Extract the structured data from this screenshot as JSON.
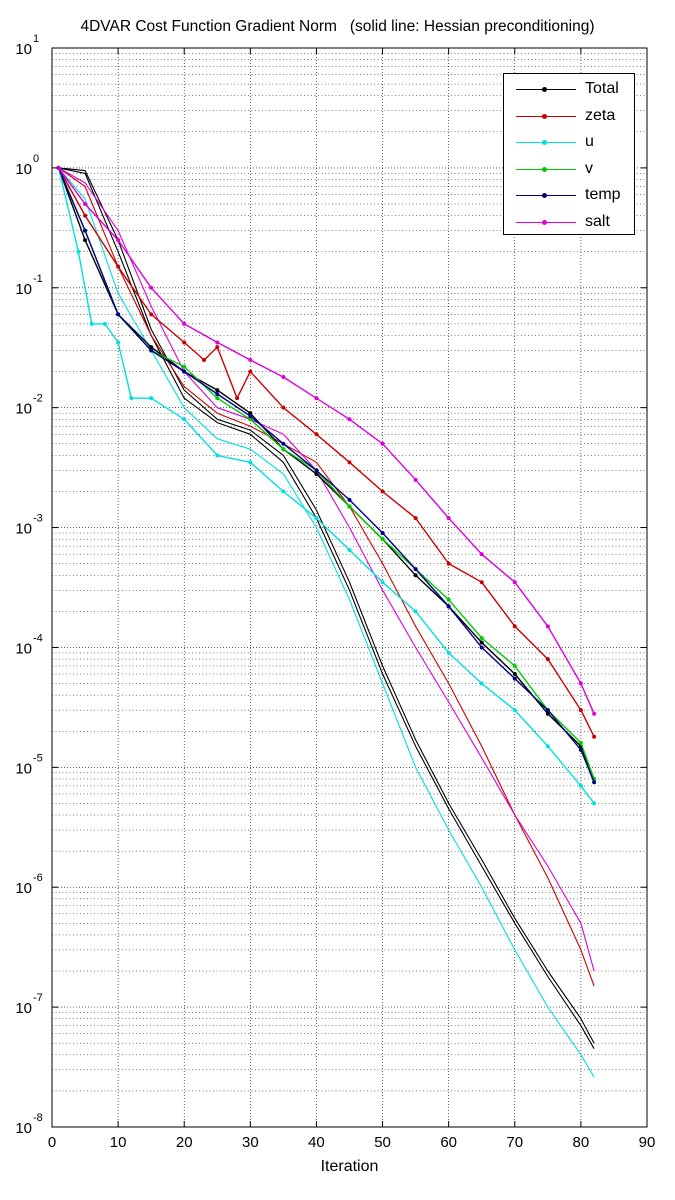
{
  "chart_data": {
    "type": "line",
    "title": "4DVAR Cost Function Gradient Norm   (solid line: Hessian preconditioning)",
    "xlabel": "Iteration",
    "ylabel": "",
    "xlim": [
      0,
      90
    ],
    "ylim": [
      1e-08,
      10
    ],
    "yscale": "log",
    "grid": true,
    "legend_position": "top-right",
    "x_ticks": [
      "0",
      "10",
      "20",
      "30",
      "40",
      "50",
      "60",
      "70",
      "80",
      "90"
    ],
    "y_ticks": [
      {
        "base": "10",
        "exp": "1"
      },
      {
        "base": "10",
        "exp": "0"
      },
      {
        "base": "10",
        "exp": "-1"
      },
      {
        "base": "10",
        "exp": "-2"
      },
      {
        "base": "10",
        "exp": "-3"
      },
      {
        "base": "10",
        "exp": "-4"
      },
      {
        "base": "10",
        "exp": "-5"
      },
      {
        "base": "10",
        "exp": "-6"
      },
      {
        "base": "10",
        "exp": "-7"
      },
      {
        "base": "10",
        "exp": "-8"
      }
    ],
    "series": [
      {
        "name": "Total",
        "color": "#000000",
        "marker": "dot",
        "x": [
          1,
          5,
          10,
          15,
          20,
          25,
          30,
          35,
          40,
          45,
          50,
          55,
          60,
          65,
          70,
          75,
          80,
          82
        ],
        "y": [
          1.0,
          0.25,
          0.06,
          0.032,
          0.02,
          0.014,
          0.009,
          0.0045,
          0.0028,
          0.0015,
          0.0008,
          0.0004,
          0.00022,
          0.00011,
          6e-05,
          2.8e-05,
          1.5e-05,
          8e-06
        ]
      },
      {
        "name": "zeta",
        "color": "#cc0000",
        "marker": "dot",
        "x": [
          1,
          5,
          10,
          15,
          20,
          23,
          25,
          28,
          30,
          35,
          40,
          45,
          50,
          55,
          60,
          65,
          70,
          75,
          80,
          82
        ],
        "y": [
          1.0,
          0.4,
          0.15,
          0.06,
          0.035,
          0.025,
          0.032,
          0.012,
          0.02,
          0.01,
          0.006,
          0.0035,
          0.002,
          0.0012,
          0.0005,
          0.00035,
          0.00015,
          8e-05,
          3e-05,
          1.8e-05
        ]
      },
      {
        "name": "u",
        "color": "#00e0e0",
        "marker": "dot",
        "x": [
          1,
          4,
          6,
          8,
          10,
          12,
          15,
          20,
          25,
          30,
          35,
          40,
          45,
          50,
          55,
          60,
          65,
          70,
          75,
          80,
          82
        ],
        "y": [
          1.0,
          0.2,
          0.05,
          0.05,
          0.035,
          0.012,
          0.012,
          0.008,
          0.004,
          0.0035,
          0.002,
          0.0012,
          0.00065,
          0.00035,
          0.0002,
          9e-05,
          5e-05,
          3e-05,
          1.5e-05,
          7e-06,
          5e-06
        ]
      },
      {
        "name": "v",
        "color": "#00cc00",
        "marker": "dot",
        "x": [
          1,
          5,
          10,
          15,
          20,
          25,
          30,
          35,
          40,
          45,
          50,
          55,
          60,
          65,
          70,
          75,
          80,
          82
        ],
        "y": [
          1.0,
          0.3,
          0.06,
          0.03,
          0.022,
          0.012,
          0.008,
          0.0045,
          0.003,
          0.0015,
          0.0008,
          0.00045,
          0.00025,
          0.00012,
          7e-05,
          3e-05,
          1.6e-05,
          8e-06
        ]
      },
      {
        "name": "temp",
        "color": "#00008b",
        "marker": "dot",
        "x": [
          1,
          5,
          10,
          15,
          20,
          25,
          30,
          35,
          40,
          45,
          50,
          55,
          60,
          65,
          70,
          75,
          80,
          82
        ],
        "y": [
          1.0,
          0.3,
          0.06,
          0.03,
          0.02,
          0.013,
          0.0085,
          0.005,
          0.003,
          0.0017,
          0.0009,
          0.00045,
          0.00022,
          0.0001,
          5.5e-05,
          3e-05,
          1.4e-05,
          7.5e-06
        ]
      },
      {
        "name": "salt",
        "color": "#dd00dd",
        "marker": "dot",
        "x": [
          1,
          5,
          10,
          15,
          20,
          25,
          30,
          35,
          40,
          45,
          50,
          55,
          60,
          65,
          70,
          75,
          80,
          82
        ],
        "y": [
          1.0,
          0.5,
          0.25,
          0.1,
          0.05,
          0.035,
          0.025,
          0.018,
          0.012,
          0.008,
          0.005,
          0.0025,
          0.0012,
          0.0006,
          0.00035,
          0.00015,
          5e-05,
          2.8e-05
        ]
      },
      {
        "color": "#000000",
        "marker": "none",
        "x": [
          1,
          5,
          10,
          15,
          20,
          25,
          30,
          35,
          40,
          45,
          50,
          55,
          60,
          65,
          70,
          75,
          80,
          82
        ],
        "y": [
          1.0,
          0.9,
          0.2,
          0.04,
          0.012,
          0.0075,
          0.006,
          0.0035,
          0.0012,
          0.0003,
          6e-05,
          1.5e-05,
          4.5e-06,
          1.5e-06,
          5e-07,
          1.8e-07,
          7e-08,
          4.5e-08
        ]
      },
      {
        "color": "#000000",
        "marker": "none",
        "x": [
          1,
          5,
          10,
          15,
          20,
          25,
          30,
          35,
          40,
          45,
          50,
          55,
          60,
          65,
          70,
          75,
          80,
          82
        ],
        "y": [
          1.0,
          0.95,
          0.25,
          0.045,
          0.014,
          0.008,
          0.0065,
          0.004,
          0.0014,
          0.00035,
          7e-05,
          1.7e-05,
          5e-06,
          1.7e-06,
          5.5e-07,
          2e-07,
          8e-08,
          5e-08
        ]
      },
      {
        "color": "#cc0000",
        "marker": "none",
        "x": [
          1,
          5,
          10,
          15,
          20,
          25,
          30,
          35,
          40,
          45,
          50,
          55,
          60,
          65,
          70,
          75,
          80,
          82
        ],
        "y": [
          1.0,
          0.7,
          0.15,
          0.04,
          0.015,
          0.009,
          0.007,
          0.005,
          0.0035,
          0.0015,
          0.0005,
          0.00015,
          5e-05,
          1.5e-05,
          4e-06,
          1.2e-06,
          3e-07,
          1.5e-07
        ]
      },
      {
        "color": "#00e0e0",
        "marker": "none",
        "x": [
          1,
          5,
          10,
          15,
          20,
          25,
          30,
          35,
          40,
          45,
          50,
          55,
          60,
          65,
          70,
          75,
          80,
          82
        ],
        "y": [
          1.0,
          0.55,
          0.09,
          0.03,
          0.01,
          0.0055,
          0.0045,
          0.0028,
          0.001,
          0.00025,
          5e-05,
          1e-05,
          3e-06,
          1e-06,
          3e-07,
          1e-07,
          4e-08,
          2.6e-08
        ]
      },
      {
        "color": "#dd00dd",
        "marker": "none",
        "x": [
          1,
          5,
          10,
          15,
          20,
          25,
          30,
          35,
          40,
          45,
          50,
          55,
          60,
          65,
          70,
          75,
          80,
          82
        ],
        "y": [
          1.0,
          0.75,
          0.3,
          0.07,
          0.02,
          0.01,
          0.008,
          0.006,
          0.003,
          0.001,
          0.0003,
          0.0001,
          3.5e-05,
          1.2e-05,
          4e-06,
          1.5e-06,
          5e-07,
          2e-07
        ]
      }
    ]
  }
}
